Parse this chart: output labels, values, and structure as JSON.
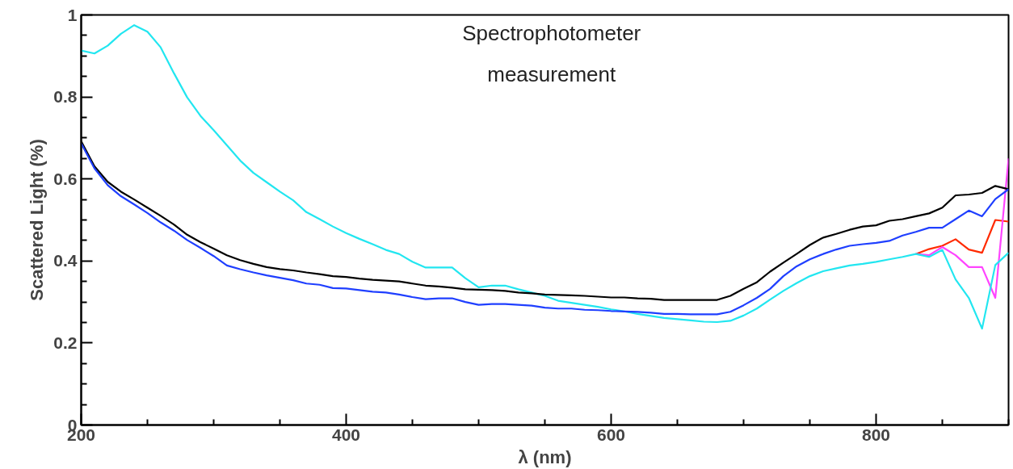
{
  "chart_data": {
    "type": "line",
    "xlabel": "λ (nm)",
    "ylabel": "Scattered Light (%)",
    "x": [
      200,
      210,
      220,
      230,
      240,
      250,
      260,
      270,
      280,
      290,
      300,
      310,
      320,
      330,
      340,
      350,
      360,
      370,
      380,
      390,
      400,
      410,
      420,
      430,
      440,
      450,
      460,
      470,
      480,
      490,
      500,
      510,
      520,
      530,
      540,
      550,
      560,
      570,
      580,
      590,
      600,
      610,
      620,
      630,
      640,
      650,
      660,
      670,
      680,
      690,
      700,
      710,
      720,
      730,
      740,
      750,
      760,
      770,
      780,
      790,
      800,
      810,
      820,
      830,
      840,
      850,
      860,
      870,
      880,
      890,
      900
    ],
    "series": [
      {
        "color": "#ff2a00",
        "values": [
          null,
          null,
          null,
          null,
          null,
          null,
          null,
          null,
          null,
          null,
          null,
          null,
          null,
          null,
          null,
          null,
          null,
          null,
          null,
          null,
          null,
          null,
          null,
          null,
          null,
          null,
          null,
          null,
          null,
          null,
          null,
          null,
          null,
          null,
          null,
          null,
          null,
          null,
          null,
          null,
          null,
          null,
          null,
          null,
          null,
          null,
          null,
          null,
          null,
          null,
          null,
          null,
          null,
          null,
          null,
          null,
          null,
          null,
          null,
          null,
          null,
          null,
          null,
          0.417,
          0.429,
          0.437,
          0.453,
          0.428,
          0.42,
          0.5,
          0.496
        ]
      },
      {
        "color": "#ff44ff",
        "values": [
          null,
          null,
          null,
          null,
          null,
          null,
          null,
          null,
          null,
          null,
          null,
          null,
          null,
          null,
          null,
          null,
          null,
          null,
          null,
          null,
          null,
          null,
          null,
          null,
          null,
          null,
          null,
          null,
          null,
          null,
          null,
          null,
          null,
          null,
          null,
          null,
          null,
          null,
          null,
          null,
          null,
          null,
          null,
          null,
          null,
          null,
          null,
          null,
          null,
          null,
          null,
          null,
          null,
          null,
          null,
          null,
          null,
          null,
          null,
          null,
          null,
          null,
          null,
          0.417,
          0.414,
          0.434,
          0.414,
          0.385,
          0.385,
          0.31,
          0.65
        ]
      },
      {
        "color": "#22e6f0",
        "values": [
          0.913,
          0.906,
          0.925,
          0.954,
          0.975,
          0.959,
          0.921,
          0.858,
          0.799,
          0.754,
          0.719,
          0.682,
          0.645,
          0.615,
          0.592,
          0.569,
          0.548,
          0.519,
          0.502,
          0.484,
          0.468,
          0.454,
          0.441,
          0.427,
          0.417,
          0.398,
          0.384,
          0.384,
          0.384,
          0.358,
          0.336,
          0.34,
          0.34,
          0.331,
          0.323,
          0.315,
          0.303,
          0.298,
          0.293,
          0.288,
          0.282,
          0.277,
          0.271,
          0.266,
          0.261,
          0.258,
          0.255,
          0.252,
          0.251,
          0.254,
          0.267,
          0.284,
          0.306,
          0.327,
          0.346,
          0.363,
          0.375,
          0.382,
          0.389,
          0.393,
          0.398,
          0.404,
          0.41,
          0.417,
          0.41,
          0.427,
          0.355,
          0.31,
          0.235,
          0.39,
          0.42
        ]
      },
      {
        "color": "#000000",
        "values": [
          0.692,
          0.631,
          0.593,
          0.569,
          0.55,
          0.53,
          0.51,
          0.489,
          0.464,
          0.446,
          0.43,
          0.414,
          0.402,
          0.393,
          0.385,
          0.38,
          0.377,
          0.372,
          0.368,
          0.363,
          0.361,
          0.357,
          0.354,
          0.352,
          0.35,
          0.345,
          0.34,
          0.338,
          0.335,
          0.331,
          0.33,
          0.329,
          0.327,
          0.323,
          0.321,
          0.318,
          0.317,
          0.316,
          0.315,
          0.313,
          0.311,
          0.311,
          0.309,
          0.308,
          0.305,
          0.305,
          0.305,
          0.305,
          0.305,
          0.315,
          0.332,
          0.348,
          0.374,
          0.396,
          0.417,
          0.439,
          0.457,
          0.466,
          0.476,
          0.484,
          0.487,
          0.498,
          0.502,
          0.509,
          0.516,
          0.53,
          0.56,
          0.562,
          0.566,
          0.583,
          0.575
        ]
      },
      {
        "color": "#1f3fff",
        "values": [
          0.687,
          0.626,
          0.585,
          0.558,
          0.538,
          0.517,
          0.494,
          0.474,
          0.451,
          0.432,
          0.412,
          0.389,
          0.38,
          0.372,
          0.365,
          0.359,
          0.353,
          0.345,
          0.342,
          0.334,
          0.333,
          0.329,
          0.325,
          0.323,
          0.318,
          0.312,
          0.307,
          0.309,
          0.309,
          0.3,
          0.293,
          0.295,
          0.295,
          0.293,
          0.291,
          0.286,
          0.284,
          0.284,
          0.281,
          0.28,
          0.278,
          0.277,
          0.276,
          0.274,
          0.271,
          0.271,
          0.27,
          0.27,
          0.27,
          0.276,
          0.292,
          0.31,
          0.332,
          0.363,
          0.387,
          0.404,
          0.417,
          0.428,
          0.437,
          0.441,
          0.444,
          0.449,
          0.462,
          0.471,
          0.481,
          0.481,
          0.502,
          0.523,
          0.509,
          0.551,
          0.575
        ]
      }
    ],
    "xlim": [
      200,
      900
    ],
    "xticks": [
      200,
      400,
      600,
      800
    ],
    "ylim": [
      0,
      1
    ],
    "yticks": [
      0,
      {
        "value": 0.2,
        "label": "0.2"
      },
      {
        "value": 0.4,
        "label": "0.4"
      },
      {
        "value": 0.6,
        "label": "0.6"
      },
      {
        "value": 0.8,
        "label": "0.8"
      },
      1
    ],
    "annotations": [
      "Spectrophotometer\nmeasurement"
    ]
  }
}
